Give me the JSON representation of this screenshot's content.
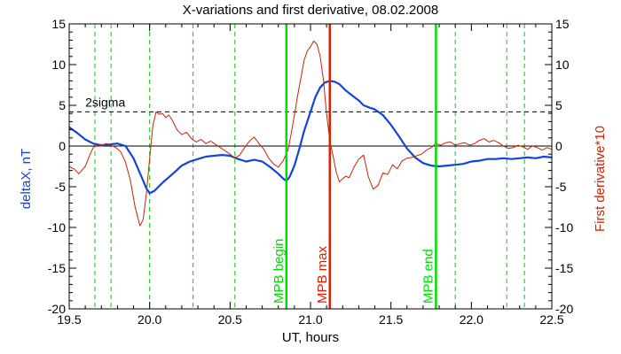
{
  "chart_data": {
    "type": "line",
    "title": "X-variations and first derivative, 08.02.2008",
    "xlabel": "UT, hours",
    "ylabel_left": "deltaX, nT",
    "ylabel_right": "First derivative*10",
    "xlim": [
      19.5,
      22.5
    ],
    "ylim_left": [
      -20,
      15
    ],
    "ylim_right": [
      -20,
      15
    ],
    "x_ticks": [
      19.5,
      20.0,
      20.5,
      21.0,
      21.5,
      22.0,
      22.5
    ],
    "x_tick_labels": [
      "19.5",
      "20.0",
      "20.5",
      "21.0",
      "21.5",
      "22.0",
      "22.5"
    ],
    "y_ticks": [
      -20,
      -15,
      -10,
      -5,
      0,
      5,
      10,
      15
    ],
    "y_tick_labels": [
      "-20",
      "-15",
      "-10",
      "-5",
      "0",
      "5",
      "10",
      "15"
    ],
    "threshold": {
      "label": "2sigma",
      "value": 4.2
    },
    "zero_line": 0,
    "dashed_green_lines": [
      19.66,
      19.76,
      20.0,
      20.27,
      20.53,
      21.9,
      22.22,
      22.33
    ],
    "markers": [
      {
        "label": "MPB begin",
        "x": 20.85,
        "color": "#00dd00"
      },
      {
        "label": "MPB max",
        "x": 21.12,
        "color": "#dd2200"
      },
      {
        "label": "MPB end",
        "x": 21.78,
        "color": "#00dd00"
      }
    ],
    "series": [
      {
        "key": "deltaX",
        "color": "#1144dd",
        "points": [
          [
            19.5,
            2.3
          ],
          [
            19.55,
            1.6
          ],
          [
            19.6,
            0.8
          ],
          [
            19.65,
            0.3
          ],
          [
            19.7,
            0.1
          ],
          [
            19.75,
            0.2
          ],
          [
            19.8,
            0.3
          ],
          [
            19.85,
            0.0
          ],
          [
            19.9,
            -1.5
          ],
          [
            19.95,
            -3.8
          ],
          [
            19.98,
            -5.2
          ],
          [
            20.0,
            -5.8
          ],
          [
            20.03,
            -5.5
          ],
          [
            20.08,
            -4.5
          ],
          [
            20.15,
            -3.3
          ],
          [
            20.2,
            -2.4
          ],
          [
            20.25,
            -1.9
          ],
          [
            20.3,
            -1.6
          ],
          [
            20.35,
            -1.3
          ],
          [
            20.4,
            -1.2
          ],
          [
            20.45,
            -1.1
          ],
          [
            20.5,
            -1.2
          ],
          [
            20.55,
            -1.6
          ],
          [
            20.6,
            -1.9
          ],
          [
            20.65,
            -1.7
          ],
          [
            20.7,
            -1.9
          ],
          [
            20.75,
            -2.6
          ],
          [
            20.8,
            -3.4
          ],
          [
            20.83,
            -4.0
          ],
          [
            20.85,
            -4.3
          ],
          [
            20.87,
            -3.8
          ],
          [
            20.9,
            -2.4
          ],
          [
            20.93,
            -0.4
          ],
          [
            20.96,
            1.8
          ],
          [
            21.0,
            4.2
          ],
          [
            21.03,
            6.0
          ],
          [
            21.06,
            7.2
          ],
          [
            21.09,
            7.8
          ],
          [
            21.12,
            8.0
          ],
          [
            21.15,
            7.9
          ],
          [
            21.18,
            7.6
          ],
          [
            21.22,
            6.8
          ],
          [
            21.26,
            6.2
          ],
          [
            21.3,
            5.6
          ],
          [
            21.33,
            5.0
          ],
          [
            21.37,
            4.7
          ],
          [
            21.4,
            4.5
          ],
          [
            21.45,
            3.8
          ],
          [
            21.5,
            2.6
          ],
          [
            21.55,
            1.2
          ],
          [
            21.6,
            -0.3
          ],
          [
            21.65,
            -1.4
          ],
          [
            21.7,
            -2.1
          ],
          [
            21.75,
            -2.4
          ],
          [
            21.8,
            -2.5
          ],
          [
            21.85,
            -2.4
          ],
          [
            21.9,
            -2.3
          ],
          [
            21.95,
            -2.2
          ],
          [
            22.0,
            -1.9
          ],
          [
            22.05,
            -1.8
          ],
          [
            22.1,
            -1.6
          ],
          [
            22.15,
            -1.6
          ],
          [
            22.2,
            -1.5
          ],
          [
            22.25,
            -1.6
          ],
          [
            22.3,
            -1.5
          ],
          [
            22.35,
            -1.4
          ],
          [
            22.4,
            -1.5
          ],
          [
            22.45,
            -1.3
          ],
          [
            22.5,
            -1.4
          ]
        ]
      },
      {
        "key": "derivative",
        "color": "#cc2200",
        "points": [
          [
            19.5,
            -2.5
          ],
          [
            19.53,
            -2.8
          ],
          [
            19.56,
            -3.4
          ],
          [
            19.6,
            -2.5
          ],
          [
            19.63,
            -1.0
          ],
          [
            19.66,
            0.2
          ],
          [
            19.7,
            0.0
          ],
          [
            19.73,
            0.3
          ],
          [
            19.76,
            0.1
          ],
          [
            19.79,
            -0.2
          ],
          [
            19.82,
            -0.7
          ],
          [
            19.85,
            -2.0
          ],
          [
            19.88,
            -4.2
          ],
          [
            19.91,
            -7.5
          ],
          [
            19.94,
            -9.8
          ],
          [
            19.96,
            -9.0
          ],
          [
            19.98,
            -5.8
          ],
          [
            20.0,
            -1.5
          ],
          [
            20.02,
            2.5
          ],
          [
            20.04,
            4.2
          ],
          [
            20.06,
            3.9
          ],
          [
            20.08,
            4.0
          ],
          [
            20.1,
            3.5
          ],
          [
            20.12,
            3.8
          ],
          [
            20.14,
            3.2
          ],
          [
            20.17,
            2.0
          ],
          [
            20.2,
            1.4
          ],
          [
            20.23,
            1.7
          ],
          [
            20.26,
            0.9
          ],
          [
            20.29,
            0.5
          ],
          [
            20.32,
            0.8
          ],
          [
            20.35,
            0.3
          ],
          [
            20.38,
            0.6
          ],
          [
            20.41,
            0.2
          ],
          [
            20.44,
            -0.2
          ],
          [
            20.47,
            -0.6
          ],
          [
            20.5,
            -1.0
          ],
          [
            20.53,
            -1.5
          ],
          [
            20.56,
            -1.1
          ],
          [
            20.59,
            -0.2
          ],
          [
            20.62,
            0.6
          ],
          [
            20.65,
            1.1
          ],
          [
            20.68,
            0.3
          ],
          [
            20.71,
            -0.4
          ],
          [
            20.74,
            -1.5
          ],
          [
            20.77,
            -2.2
          ],
          [
            20.8,
            -2.6
          ],
          [
            20.83,
            -1.8
          ],
          [
            20.86,
            -0.5
          ],
          [
            20.88,
            1.5
          ],
          [
            20.9,
            3.8
          ],
          [
            20.92,
            6.2
          ],
          [
            20.94,
            8.3
          ],
          [
            20.96,
            10.5
          ],
          [
            20.98,
            11.7
          ],
          [
            21.0,
            12.2
          ],
          [
            21.02,
            12.9
          ],
          [
            21.04,
            12.5
          ],
          [
            21.06,
            11.0
          ],
          [
            21.08,
            8.2
          ],
          [
            21.1,
            4.0
          ],
          [
            21.12,
            0.6
          ],
          [
            21.14,
            -1.2
          ],
          [
            21.16,
            -3.2
          ],
          [
            21.18,
            -4.4
          ],
          [
            21.2,
            -4.0
          ],
          [
            21.22,
            -3.7
          ],
          [
            21.24,
            -3.9
          ],
          [
            21.27,
            -2.6
          ],
          [
            21.3,
            -1.6
          ],
          [
            21.33,
            -1.1
          ],
          [
            21.36,
            -3.8
          ],
          [
            21.39,
            -5.3
          ],
          [
            21.42,
            -4.8
          ],
          [
            21.45,
            -3.3
          ],
          [
            21.48,
            -3.5
          ],
          [
            21.51,
            -2.3
          ],
          [
            21.54,
            -2.8
          ],
          [
            21.57,
            -1.8
          ],
          [
            21.6,
            -1.5
          ],
          [
            21.63,
            -1.4
          ],
          [
            21.66,
            -1.2
          ],
          [
            21.69,
            -1.0
          ],
          [
            21.72,
            -0.5
          ],
          [
            21.75,
            -0.2
          ],
          [
            21.78,
            0.3
          ],
          [
            21.81,
            0.1
          ],
          [
            21.84,
            0.4
          ],
          [
            21.87,
            0.5
          ],
          [
            21.9,
            0.1
          ],
          [
            21.93,
            0.3
          ],
          [
            21.96,
            0.4
          ],
          [
            21.99,
            0.1
          ],
          [
            22.02,
            0.3
          ],
          [
            22.05,
            0.7
          ],
          [
            22.08,
            0.9
          ],
          [
            22.11,
            0.5
          ],
          [
            22.14,
            0.7
          ],
          [
            22.17,
            0.4
          ],
          [
            22.2,
            0.0
          ],
          [
            22.23,
            -0.3
          ],
          [
            22.26,
            -0.2
          ],
          [
            22.29,
            0.1
          ],
          [
            22.32,
            -0.1
          ],
          [
            22.35,
            -0.4
          ],
          [
            22.38,
            0.0
          ],
          [
            22.41,
            -0.2
          ],
          [
            22.44,
            -0.5
          ],
          [
            22.47,
            -0.2
          ],
          [
            22.5,
            -0.4
          ]
        ]
      }
    ]
  }
}
